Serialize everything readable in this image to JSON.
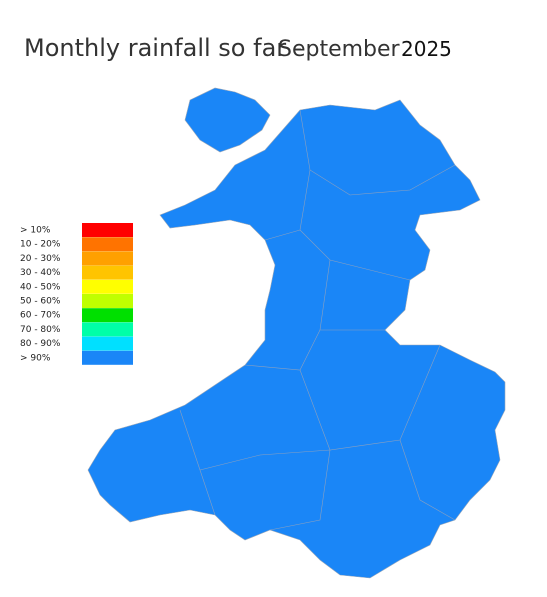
{
  "title": {
    "prefix": "Monthly rainfall so far -",
    "month": "September",
    "year": "2025"
  },
  "legend": {
    "items": [
      {
        "label": "> 10%",
        "color": "#ff0000"
      },
      {
        "label": "10 - 20%",
        "color": "#ff7300"
      },
      {
        "label": "20 - 30%",
        "color": "#ffa000"
      },
      {
        "label": "30 - 40%",
        "color": "#ffc400"
      },
      {
        "label": "40 - 50%",
        "color": "#ffff00"
      },
      {
        "label": "50 - 60%",
        "color": "#bfff00"
      },
      {
        "label": "60 - 70%",
        "color": "#00e000"
      },
      {
        "label": "70 - 80%",
        "color": "#00ffa8"
      },
      {
        "label": "80 - 90%",
        "color": "#00e0ff"
      },
      {
        "label": "> 90%",
        "color": "#1a86f7"
      }
    ]
  }
}
